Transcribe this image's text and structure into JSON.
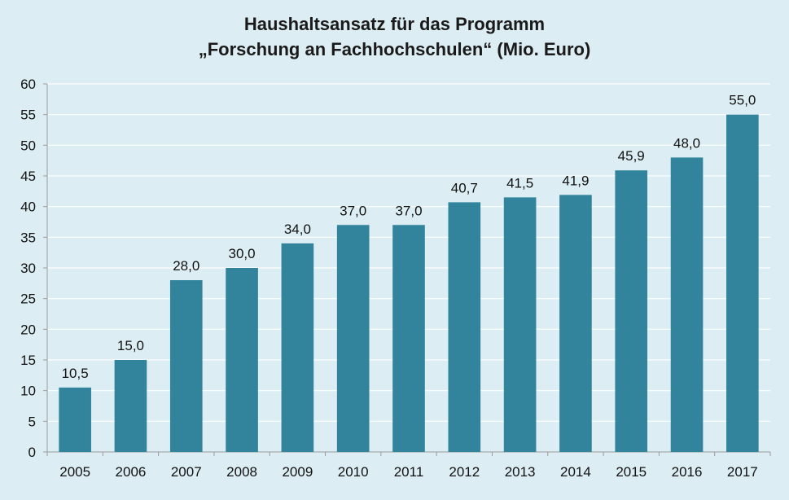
{
  "chart_data": {
    "type": "bar",
    "title_line1": "Haushaltsansatz für das Programm",
    "title_line2": "„Forschung an Fachhochschulen“",
    "title_unit": "(Mio. Euro)",
    "categories": [
      "2005",
      "2006",
      "2007",
      "2008",
      "2009",
      "2010",
      "2011",
      "2012",
      "2013",
      "2014",
      "2015",
      "2016",
      "2017"
    ],
    "values": [
      10.5,
      15.0,
      28.0,
      30.0,
      34.0,
      37.0,
      37.0,
      40.7,
      41.5,
      41.9,
      45.9,
      48.0,
      55.0
    ],
    "value_labels": [
      "10,5",
      "15,0",
      "28,0",
      "30,0",
      "34,0",
      "37,0",
      "37,0",
      "40,7",
      "41,5",
      "41,9",
      "45,9",
      "48,0",
      "55,0"
    ],
    "ylim": [
      0,
      60
    ],
    "yticks": [
      0,
      5,
      10,
      15,
      20,
      25,
      30,
      35,
      40,
      45,
      50,
      55,
      60
    ],
    "grid": true,
    "bar_color": "#31849b",
    "background_color": "#dcedf3"
  }
}
